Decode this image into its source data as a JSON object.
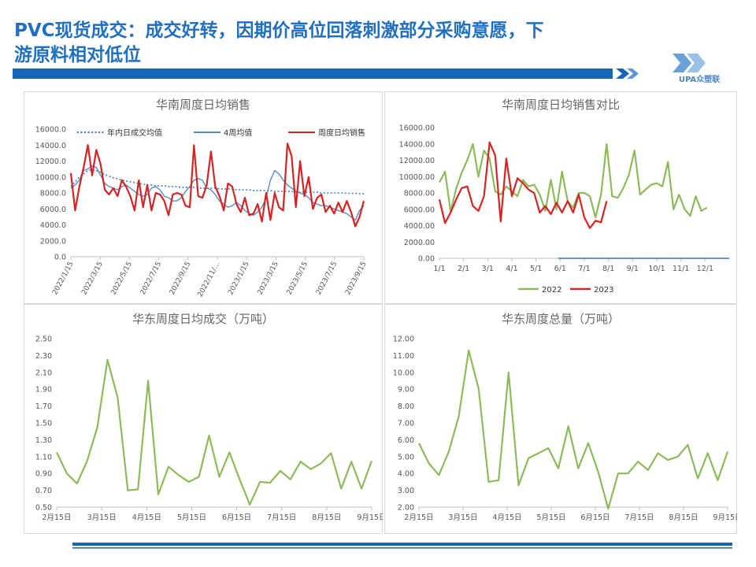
{
  "slide": {
    "title_line1": "PVC现货成交：成交好转，因期价高位回落刺激部分采购意愿，下",
    "title_line2": "游原料相对低位",
    "logo_text": "UPA众塑联"
  },
  "colors": {
    "title": "#1f6fc2",
    "header_bar": "#1565b8",
    "series_red": "#d42424",
    "series_blue": "#5a8ac8",
    "series_dotted": "#3a7cc8",
    "series_green": "#8dba5a",
    "axis_text": "#555555"
  },
  "chart_data": [
    {
      "id": "south-daily-sales",
      "type": "line",
      "title": "华南周度日均销售",
      "ylim": [
        0,
        16000
      ],
      "yticks": [
        "0.0",
        "2000.0",
        "4000.0",
        "6000.0",
        "8000.0",
        "10000.0",
        "12000.0",
        "14000.0",
        "16000.0"
      ],
      "xtick_labels": [
        "2022/1/15",
        "2022/3/15",
        "2022/5/15",
        "2022/7/15",
        "2022/9/15",
        "2022/11/…",
        "2023/1/15",
        "2023/3/15",
        "2023/5/15",
        "2023/7/15",
        "2023/9/15"
      ],
      "legend_position": "top",
      "series": [
        {
          "name": "年内日成交均值",
          "style": "dotted",
          "color": "#3a7cc8",
          "values": [
            8800,
            9400,
            10000,
            10400,
            10800,
            10900,
            10800,
            10600,
            10300,
            10100,
            9900,
            9800,
            9600,
            9500,
            9400,
            9300,
            9200,
            9100,
            9000,
            9000,
            8900,
            8900,
            8900,
            8800,
            8800,
            8800,
            8700,
            8700,
            8700,
            8700,
            8600,
            8600,
            8600,
            8600,
            8600,
            8500,
            8500,
            8500,
            8500,
            8400,
            8400,
            8400,
            8400,
            8300,
            8300,
            8300,
            8300,
            8300,
            8200,
            8200,
            8200,
            8200,
            8200,
            8100,
            8100,
            8100,
            8100,
            8100,
            8100,
            8000,
            8000,
            8000,
            8000,
            8000,
            8000,
            7950,
            7950,
            7950,
            7900,
            7900
          ]
        },
        {
          "name": "4周均值",
          "style": "solid",
          "color": "#5a8ac8",
          "values": [
            8600,
            9000,
            9600,
            10800,
            11000,
            11400,
            11200,
            10200,
            9200,
            8800,
            8600,
            8400,
            8800,
            9000,
            8600,
            8200,
            7800,
            7600,
            7800,
            8600,
            8800,
            8400,
            7600,
            7400,
            7000,
            7000,
            7400,
            8200,
            8800,
            9600,
            9800,
            9600,
            8600,
            8400,
            7800,
            7000,
            6600,
            6200,
            6400,
            6800,
            6400,
            5800,
            5400,
            5200,
            5600,
            6200,
            7400,
            9600,
            10800,
            10400,
            9600,
            9000,
            8600,
            8200,
            8000,
            7800,
            7400,
            6800,
            6600,
            6400,
            6400,
            6200,
            6000,
            5800,
            5600,
            5400,
            5000,
            4600,
            5800,
            6400
          ]
        },
        {
          "name": "周度日均销售",
          "style": "solid",
          "color": "#d42424",
          "values": [
            10500,
            5800,
            8800,
            11200,
            14000,
            10200,
            13400,
            11600,
            8400,
            7800,
            8600,
            7600,
            9600,
            8800,
            7600,
            5800,
            9600,
            6200,
            9000,
            5800,
            8000,
            7800,
            7000,
            5200,
            7800,
            8000,
            7800,
            6400,
            6200,
            14000,
            7600,
            7400,
            9000,
            13200,
            8800,
            7600,
            5800,
            9200,
            8800,
            6600,
            5600,
            7400,
            5200,
            5400,
            6600,
            4400,
            8000,
            4600,
            8000,
            6200,
            5800,
            14200,
            12600,
            6200,
            12000,
            7600,
            10000,
            6000,
            7400,
            7800,
            5600,
            6400,
            5400,
            6800,
            5600,
            7000,
            5600,
            3800,
            5000,
            7000
          ]
        }
      ]
    },
    {
      "id": "south-daily-sales-compare",
      "type": "line",
      "title": "华南周度日均销售对比",
      "ylim": [
        0,
        16000
      ],
      "yticks": [
        "0.00",
        "2000.00",
        "4000.00",
        "6000.00",
        "8000.00",
        "10000.00",
        "12000.00",
        "14000.00",
        "16000.00"
      ],
      "xtick_labels": [
        "1/1",
        "2/1",
        "3/1",
        "4/1",
        "5/1",
        "6/1",
        "7/1",
        "8/1",
        "9/1",
        "10/1",
        "11/1",
        "12/1"
      ],
      "legend_position": "bottom",
      "series": [
        {
          "name": "2022",
          "color": "#8dba5a",
          "values": [
            9300,
            10600,
            5700,
            8500,
            10500,
            12000,
            14000,
            10000,
            13200,
            12200,
            8200,
            7800,
            8800,
            8200,
            7600,
            9600,
            8800,
            9000,
            7800,
            5800,
            9600,
            6000,
            10600,
            7000,
            6200,
            8000,
            8000,
            7600,
            5000,
            7800,
            14000,
            7600,
            7400,
            8600,
            10200,
            13200,
            7800,
            8400,
            9000,
            9200,
            8800,
            11800,
            6000,
            7800,
            6000,
            5200,
            7600,
            5800,
            6200
          ]
        },
        {
          "name": "2023",
          "color": "#d42424",
          "values": [
            7200,
            4300,
            5600,
            7200,
            8600,
            8800,
            6400,
            5800,
            7600,
            14200,
            12600,
            4500,
            12200,
            7600,
            9800,
            9200,
            8400,
            8000,
            5600,
            6400,
            5400,
            6800,
            5600,
            7000,
            5600,
            7800,
            5000,
            3700,
            4600,
            4400,
            7000
          ]
        }
      ]
    },
    {
      "id": "east-daily-deal",
      "type": "line",
      "title": "华东周度日均成交（万吨）",
      "ylim": [
        0.5,
        2.5
      ],
      "yticks": [
        "0.50",
        "0.70",
        "0.90",
        "1.10",
        "1.30",
        "1.50",
        "1.70",
        "1.90",
        "2.10",
        "2.30",
        "2.50"
      ],
      "xtick_labels": [
        "2月15日",
        "3月15日",
        "4月15日",
        "5月15日",
        "6月15日",
        "7月15日",
        "8月15日",
        "9月15日"
      ],
      "series": [
        {
          "color": "#8dba5a",
          "values": [
            1.15,
            0.9,
            0.78,
            1.05,
            1.45,
            2.25,
            1.8,
            0.7,
            0.71,
            2.0,
            0.65,
            0.98,
            0.88,
            0.8,
            0.86,
            1.35,
            0.86,
            1.15,
            0.83,
            0.53,
            0.8,
            0.79,
            0.93,
            0.83,
            1.04,
            0.95,
            1.02,
            1.14,
            0.72,
            1.04,
            0.72,
            1.05
          ]
        }
      ]
    },
    {
      "id": "east-weekly-total",
      "type": "line",
      "title": "华东周度总量（万吨）",
      "ylim": [
        2,
        12
      ],
      "yticks": [
        "2.00",
        "3.00",
        "4.00",
        "5.00",
        "6.00",
        "7.00",
        "8.00",
        "9.00",
        "10.00",
        "11.00",
        "12.00"
      ],
      "xtick_labels": [
        "2月15日",
        "3月15日",
        "4月15日",
        "5月15日",
        "6月15日",
        "7月15日",
        "8月15日",
        "9月15日"
      ],
      "series": [
        {
          "color": "#8dba5a",
          "values": [
            5.8,
            4.6,
            3.9,
            5.3,
            7.4,
            11.3,
            9.0,
            3.5,
            3.6,
            10.0,
            3.3,
            4.9,
            5.2,
            5.5,
            4.3,
            6.8,
            4.3,
            5.8,
            4.1,
            1.9,
            4.0,
            4.0,
            4.7,
            4.2,
            5.2,
            4.8,
            5.0,
            5.7,
            3.7,
            5.2,
            3.6,
            5.3
          ]
        }
      ]
    }
  ]
}
